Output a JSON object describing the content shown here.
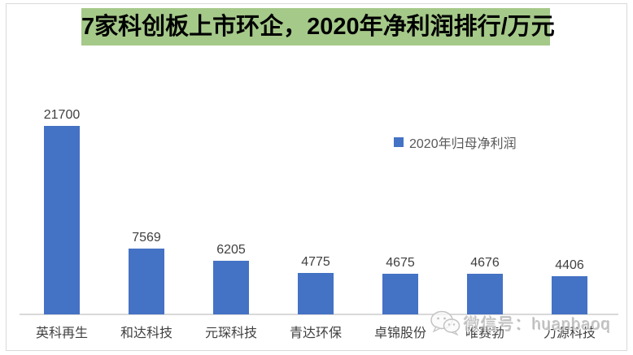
{
  "title": "7家科创板上市环企，2020年净利润排行/万元",
  "legend": {
    "label": "2020年归母净利润"
  },
  "watermark": {
    "text": "微信号：huanbaoq"
  },
  "colors": {
    "bar": "#4472c4",
    "title_bg": "#a5c989",
    "axis": "#d9d9d9",
    "value_label": "#404040",
    "category_label": "#404040",
    "legend_text": "#595959",
    "watermark_text": "#b9b9b9"
  },
  "chart_data": {
    "type": "bar",
    "title": "7家科创板上市环企，2020年净利润排行/万元",
    "series_name": "2020年归母净利润",
    "categories": [
      "英科再生",
      "和达科技",
      "元琛科技",
      "青达环保",
      "卓锦股份",
      "唯赛勃",
      "力源科技"
    ],
    "values": [
      21700,
      7569,
      6205,
      4775,
      4675,
      4676,
      4406
    ],
    "unit": "万元",
    "xlabel": "",
    "ylabel": "",
    "ylim": [
      0,
      22000
    ],
    "grid": false,
    "data_labels": true,
    "legend_position": "inside-right-upper"
  }
}
